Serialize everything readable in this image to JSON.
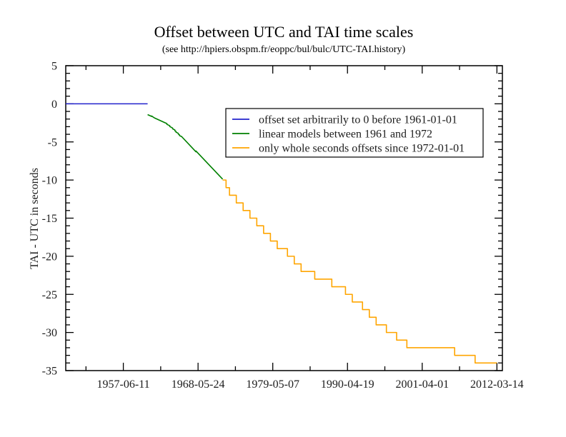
{
  "chart_data": {
    "type": "line",
    "title": "Offset between UTC and TAI time scales",
    "subtitle": "(see http://hpiers.obspm.fr/eoppc/bul/bulc/UTC-TAI.history)",
    "ylabel": "TAI - UTC in seconds",
    "xlabel": "",
    "grid": false,
    "legend_position": "inside-top-right",
    "x_range": [
      "1949-01-01",
      "2013-01-01"
    ],
    "y_range": [
      -35,
      5
    ],
    "x_major_ticks": [
      "1957-06-11",
      "1968-05-24",
      "1979-05-07",
      "1990-04-19",
      "2001-04-01",
      "2012-03-14"
    ],
    "x_minor_every_days": 2000,
    "y_major_step": 5,
    "y_minor_step": 1,
    "y_major_tick_labels": [
      "5",
      "0",
      "-5",
      "-10",
      "-15",
      "-20",
      "-25",
      "-30",
      "-35"
    ],
    "series": [
      {
        "name": "offset set arbitrarily to 0 before 1961-01-01",
        "color": "#2222cc",
        "mode": "line",
        "points": [
          [
            "1949-01-01",
            0
          ],
          [
            "1961-01-01",
            0
          ]
        ]
      },
      {
        "name": "linear models between 1961 and 1972",
        "color": "#008000",
        "mode": "line",
        "points": [
          [
            "1961-01-01",
            -1.42
          ],
          [
            "1961-08-01",
            -1.65
          ],
          [
            "1961-08-01",
            -1.6
          ],
          [
            "1962-01-01",
            -1.85
          ],
          [
            "1963-11-01",
            -2.6
          ],
          [
            "1963-11-01",
            -2.7
          ],
          [
            "1964-01-01",
            -2.77
          ],
          [
            "1964-04-01",
            -2.88
          ],
          [
            "1964-04-01",
            -2.98
          ],
          [
            "1964-09-01",
            -3.18
          ],
          [
            "1964-09-01",
            -3.28
          ],
          [
            "1965-01-01",
            -3.44
          ],
          [
            "1965-01-01",
            -3.54
          ],
          [
            "1965-03-01",
            -3.62
          ],
          [
            "1965-03-01",
            -3.72
          ],
          [
            "1965-07-01",
            -3.87
          ],
          [
            "1965-07-01",
            -3.97
          ],
          [
            "1965-09-01",
            -4.06
          ],
          [
            "1965-09-01",
            -4.16
          ],
          [
            "1966-01-01",
            -4.31
          ],
          [
            "1968-02-01",
            -6.29
          ],
          [
            "1968-02-01",
            -6.19
          ],
          [
            "1972-01-01",
            -9.89
          ]
        ]
      },
      {
        "name": "only whole seconds offsets since 1972-01-01",
        "color": "#ffa500",
        "mode": "steps",
        "points": [
          [
            "1972-01-01",
            -10
          ],
          [
            "1972-07-01",
            -11
          ],
          [
            "1973-01-01",
            -12
          ],
          [
            "1974-01-01",
            -13
          ],
          [
            "1975-01-01",
            -14
          ],
          [
            "1976-01-01",
            -15
          ],
          [
            "1977-01-01",
            -16
          ],
          [
            "1978-01-01",
            -17
          ],
          [
            "1979-01-01",
            -18
          ],
          [
            "1980-01-01",
            -19
          ],
          [
            "1981-07-01",
            -20
          ],
          [
            "1982-07-01",
            -21
          ],
          [
            "1983-07-01",
            -22
          ],
          [
            "1985-07-01",
            -23
          ],
          [
            "1988-01-01",
            -24
          ],
          [
            "1990-01-01",
            -25
          ],
          [
            "1991-01-01",
            -26
          ],
          [
            "1992-07-01",
            -27
          ],
          [
            "1993-07-01",
            -28
          ],
          [
            "1994-07-01",
            -29
          ],
          [
            "1996-01-01",
            -30
          ],
          [
            "1997-07-01",
            -31
          ],
          [
            "1999-01-01",
            -32
          ],
          [
            "2006-01-01",
            -33
          ],
          [
            "2009-01-01",
            -34
          ],
          [
            "2012-03-14",
            -34
          ]
        ]
      }
    ]
  }
}
